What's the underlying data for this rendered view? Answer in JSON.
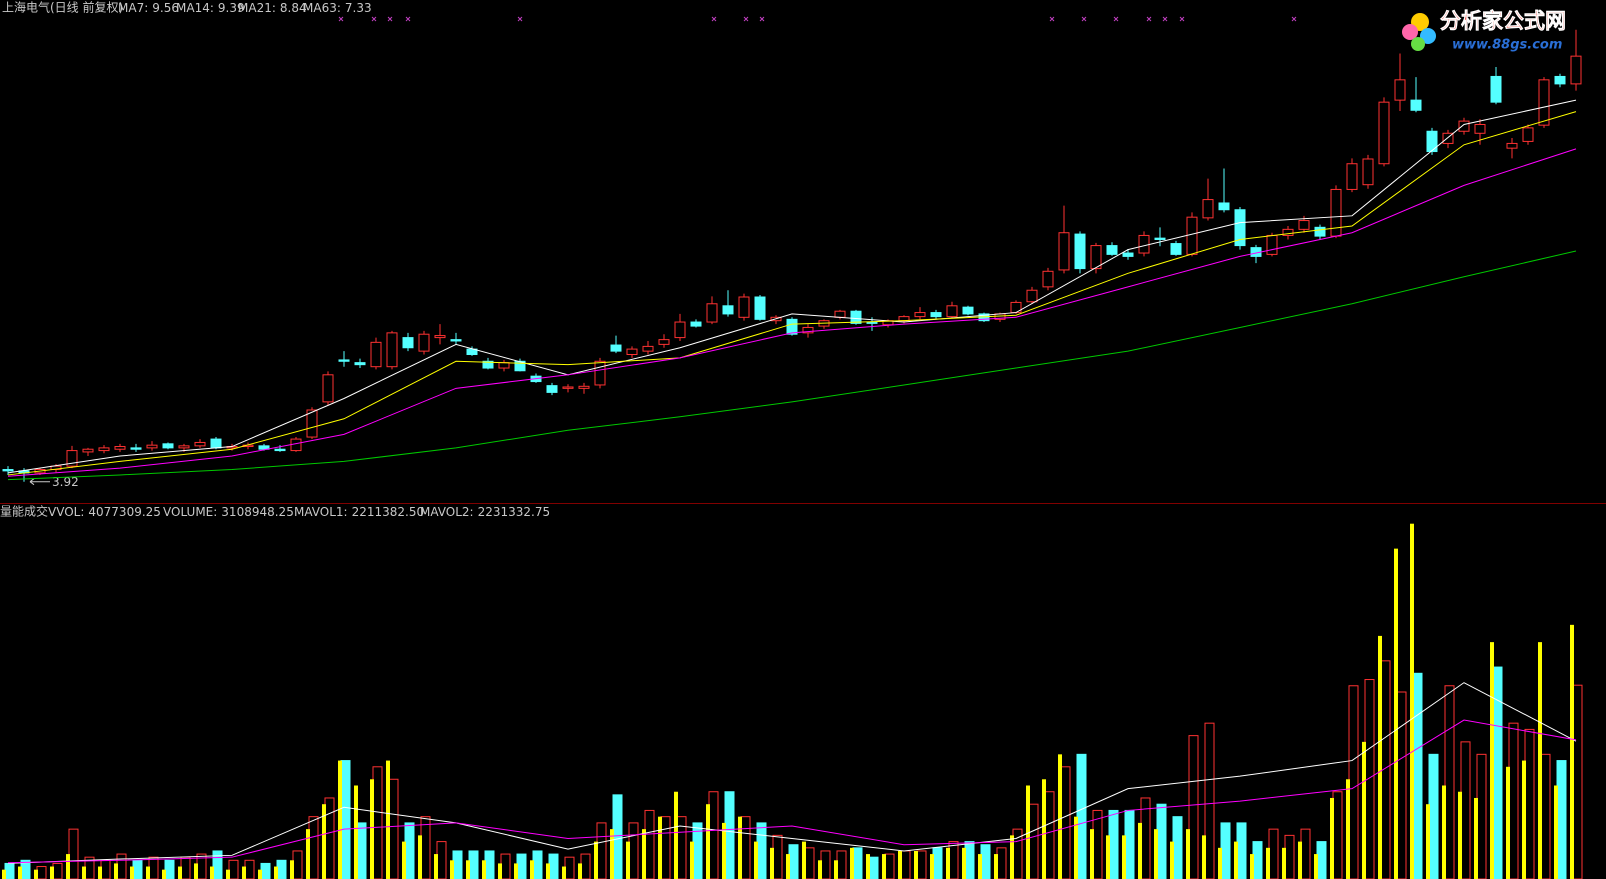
{
  "chart_data": [
    {
      "type": "candlestick",
      "title": "上海电气(日线 前复权)",
      "open": [
        4.1,
        4.08,
        4.05,
        4.1,
        4.15,
        4.36,
        4.38,
        4.4,
        4.42,
        4.42,
        4.48,
        4.42,
        4.45,
        4.55,
        4.42,
        4.44,
        4.45,
        4.4,
        4.38,
        4.58,
        5.1,
        5.72,
        5.68,
        5.62,
        5.62,
        6.05,
        5.85,
        6.05,
        6.02,
        5.88,
        5.7,
        5.6,
        5.7,
        5.48,
        5.34,
        5.3,
        5.3,
        5.35,
        5.94,
        5.8,
        5.85,
        5.95,
        6.05,
        6.28,
        6.28,
        6.52,
        6.35,
        6.65,
        6.3,
        6.32,
        6.12,
        6.22,
        6.35,
        6.44,
        6.28,
        6.24,
        6.3,
        6.36,
        6.42,
        6.36,
        6.5,
        6.4,
        6.32,
        6.42,
        6.58,
        6.8,
        7.05,
        7.58,
        7.07,
        7.41,
        7.3,
        7.3,
        7.52,
        7.44,
        7.28,
        7.82,
        8.04,
        7.94,
        7.38,
        7.28,
        7.56,
        7.65,
        7.68,
        7.55,
        8.24,
        8.31,
        8.62,
        9.56,
        9.56,
        9.1,
        8.92,
        9.1,
        9.07,
        9.91,
        8.85,
        8.95,
        9.19,
        9.91,
        9.8
      ],
      "high": [
        4.15,
        4.12,
        4.12,
        4.18,
        4.45,
        4.42,
        4.46,
        4.48,
        4.48,
        4.52,
        4.5,
        4.48,
        4.55,
        4.58,
        4.48,
        4.5,
        4.48,
        4.46,
        4.58,
        5.02,
        5.55,
        5.85,
        5.74,
        6.05,
        6.15,
        6.12,
        6.15,
        6.25,
        6.12,
        5.92,
        5.75,
        5.72,
        5.74,
        5.52,
        5.38,
        5.36,
        5.38,
        5.75,
        6.08,
        5.92,
        6.0,
        6.1,
        6.4,
        6.32,
        6.66,
        6.75,
        6.7,
        6.68,
        6.38,
        6.35,
        6.25,
        6.32,
        6.46,
        6.46,
        6.35,
        6.32,
        6.38,
        6.5,
        6.46,
        6.58,
        6.52,
        6.42,
        6.42,
        6.6,
        6.8,
        7.08,
        8.0,
        7.62,
        7.45,
        7.46,
        7.36,
        7.62,
        7.68,
        7.48,
        7.9,
        8.4,
        8.55,
        7.98,
        7.42,
        7.6,
        7.7,
        7.85,
        7.72,
        8.3,
        8.7,
        8.75,
        9.6,
        10.25,
        9.9,
        9.15,
        9.12,
        9.3,
        9.28,
        10.05,
        9.0,
        9.2,
        9.9,
        9.95,
        10.6
      ],
      "low": [
        4.02,
        3.92,
        4.02,
        4.06,
        4.12,
        4.3,
        4.34,
        4.36,
        4.36,
        4.38,
        4.4,
        4.36,
        4.42,
        4.4,
        4.38,
        4.4,
        4.38,
        4.36,
        4.36,
        4.55,
        5.05,
        5.62,
        5.6,
        5.58,
        5.58,
        5.85,
        5.8,
        5.95,
        5.95,
        5.78,
        5.58,
        5.55,
        5.55,
        5.38,
        5.2,
        5.24,
        5.22,
        5.3,
        5.82,
        5.75,
        5.8,
        5.9,
        6.0,
        6.2,
        6.25,
        6.36,
        6.3,
        6.3,
        6.25,
        6.08,
        6.05,
        6.18,
        6.32,
        6.24,
        6.15,
        6.2,
        6.26,
        6.32,
        6.33,
        6.34,
        6.38,
        6.28,
        6.28,
        6.4,
        6.55,
        6.75,
        7.0,
        7.0,
        7.0,
        7.26,
        7.2,
        7.25,
        7.4,
        7.26,
        7.25,
        7.78,
        7.9,
        7.35,
        7.15,
        7.25,
        7.5,
        7.6,
        7.5,
        7.52,
        8.2,
        8.25,
        8.58,
        9.4,
        9.38,
        8.75,
        8.85,
        9.05,
        8.9,
        9.5,
        8.7,
        8.9,
        9.15,
        9.75,
        9.7
      ],
      "close": [
        4.08,
        4.05,
        4.1,
        4.15,
        4.38,
        4.4,
        4.42,
        4.44,
        4.4,
        4.46,
        4.42,
        4.45,
        4.5,
        4.42,
        4.44,
        4.46,
        4.4,
        4.38,
        4.55,
        4.98,
        5.5,
        5.7,
        5.65,
        5.98,
        6.12,
        5.9,
        6.1,
        6.08,
        6.0,
        5.8,
        5.6,
        5.68,
        5.56,
        5.4,
        5.24,
        5.32,
        5.33,
        5.7,
        5.85,
        5.88,
        5.92,
        6.02,
        6.28,
        6.22,
        6.55,
        6.4,
        6.65,
        6.32,
        6.35,
        6.1,
        6.2,
        6.3,
        6.44,
        6.26,
        6.26,
        6.3,
        6.36,
        6.42,
        6.36,
        6.52,
        6.4,
        6.3,
        6.4,
        6.57,
        6.75,
        7.03,
        7.6,
        7.07,
        7.41,
        7.28,
        7.25,
        7.56,
        7.5,
        7.28,
        7.83,
        8.09,
        7.94,
        7.41,
        7.25,
        7.56,
        7.65,
        7.78,
        7.55,
        8.24,
        8.62,
        8.69,
        9.53,
        9.86,
        9.41,
        8.8,
        9.07,
        9.25,
        9.2,
        9.53,
        8.92,
        9.15,
        9.86,
        9.8,
        10.21
      ],
      "up_color": "#ff3232",
      "down_color": "#54ffff",
      "ylim": [
        3.62,
        11.04
      ],
      "series": [
        {
          "name": "MA7:",
          "color": "#ffffff",
          "x": [
            0,
            7,
            14,
            21,
            28,
            35,
            42,
            49,
            56,
            63,
            70,
            77,
            84,
            91,
            98
          ],
          "values": [
            4.05,
            4.3,
            4.44,
            5.15,
            5.95,
            5.5,
            5.9,
            6.4,
            6.28,
            6.42,
            7.35,
            7.75,
            7.85,
            9.2,
            9.56
          ]
        },
        {
          "name": "MA14:",
          "color": "#ffff00",
          "x": [
            0,
            7,
            14,
            21,
            28,
            35,
            42,
            49,
            56,
            63,
            70,
            77,
            84,
            91,
            98
          ],
          "values": [
            4.02,
            4.22,
            4.4,
            4.85,
            5.7,
            5.65,
            5.75,
            6.25,
            6.3,
            6.38,
            7.0,
            7.5,
            7.7,
            8.9,
            9.39
          ]
        },
        {
          "name": "MA21:",
          "color": "#ff00ff",
          "x": [
            0,
            7,
            14,
            21,
            28,
            35,
            42,
            49,
            56,
            63,
            70,
            77,
            84,
            91,
            98
          ],
          "values": [
            4.0,
            4.12,
            4.3,
            4.62,
            5.3,
            5.5,
            5.75,
            6.12,
            6.25,
            6.35,
            6.8,
            7.25,
            7.6,
            8.3,
            8.84
          ]
        },
        {
          "name": "MA63:",
          "color": "#00c800",
          "x": [
            0,
            7,
            14,
            21,
            28,
            35,
            42,
            49,
            56,
            63,
            70,
            77,
            84,
            91,
            98
          ],
          "values": [
            3.95,
            4.02,
            4.1,
            4.22,
            4.42,
            4.68,
            4.88,
            5.1,
            5.35,
            5.6,
            5.85,
            6.2,
            6.55,
            6.95,
            7.33
          ]
        }
      ]
    },
    {
      "type": "volume",
      "title": "量能成交",
      "ylim": [
        0,
        6000000
      ],
      "series": [
        {
          "name": "VVOL:",
          "color": "#ffff00",
          "values": [
            150000,
            200000,
            150000,
            200000,
            400000,
            200000,
            200000,
            250000,
            200000,
            200000,
            150000,
            200000,
            250000,
            200000,
            150000,
            200000,
            150000,
            200000,
            300000,
            800000,
            1200000,
            1900000,
            1500000,
            1600000,
            1900000,
            600000,
            700000,
            400000,
            300000,
            300000,
            300000,
            250000,
            250000,
            300000,
            250000,
            200000,
            250000,
            600000,
            800000,
            600000,
            800000,
            1000000,
            1400000,
            600000,
            1200000,
            900000,
            1000000,
            600000,
            500000,
            400000,
            600000,
            300000,
            300000,
            500000,
            400000,
            400000,
            450000,
            450000,
            400000,
            500000,
            500000,
            400000,
            400000,
            700000,
            1500000,
            1600000,
            2000000,
            1000000,
            800000,
            700000,
            700000,
            900000,
            800000,
            600000,
            800000,
            700000,
            500000,
            600000,
            400000,
            500000,
            500000,
            600000,
            400000,
            1300000,
            1600000,
            2200000,
            3900000,
            5300000,
            5700000,
            1200000,
            1500000,
            1400000,
            1300000,
            3800000,
            1800000,
            1900000,
            3800000,
            1500000,
            4077309.25
          ]
        },
        {
          "name": "VOLUME:",
          "color": "#54ffff",
          "values": [
            250000,
            300000,
            200000,
            250000,
            800000,
            350000,
            300000,
            400000,
            300000,
            350000,
            300000,
            350000,
            400000,
            450000,
            300000,
            300000,
            250000,
            300000,
            450000,
            1000000,
            1300000,
            1900000,
            900000,
            1800000,
            1600000,
            900000,
            1000000,
            600000,
            450000,
            450000,
            450000,
            400000,
            400000,
            450000,
            400000,
            350000,
            400000,
            900000,
            1350000,
            900000,
            1100000,
            1000000,
            1000000,
            900000,
            1400000,
            1400000,
            1000000,
            900000,
            700000,
            550000,
            500000,
            450000,
            450000,
            500000,
            350000,
            400000,
            450000,
            450000,
            500000,
            600000,
            600000,
            550000,
            500000,
            800000,
            1200000,
            1400000,
            1800000,
            2000000,
            1100000,
            1100000,
            1100000,
            1300000,
            1200000,
            1000000,
            2300000,
            2500000,
            900000,
            900000,
            600000,
            800000,
            700000,
            800000,
            600000,
            1400000,
            3100000,
            3200000,
            3500000,
            3000000,
            3300000,
            2000000,
            3100000,
            2200000,
            2000000,
            3400000,
            2500000,
            2400000,
            2000000,
            1900000,
            3108948.25
          ]
        },
        {
          "name": "MAVOL1:",
          "color": "#ffffff",
          "x": [
            0,
            7,
            14,
            21,
            28,
            35,
            42,
            49,
            56,
            63,
            70,
            77,
            84,
            91,
            98
          ],
          "values": [
            250000,
            320000,
            380000,
            1150000,
            900000,
            480000,
            850000,
            650000,
            450000,
            650000,
            1450000,
            1650000,
            1900000,
            3150000,
            2211382.5
          ],
          "value_labels": [
            null,
            null,
            null,
            null,
            null,
            null,
            null,
            null,
            null,
            null,
            null,
            null,
            null,
            null,
            "2211382.50"
          ]
        },
        {
          "name": "MAVOL2:",
          "color": "#ff00ff",
          "x": [
            0,
            7,
            14,
            21,
            28,
            35,
            42,
            49,
            56,
            63,
            70,
            77,
            84,
            91,
            98
          ],
          "values": [
            260000,
            300000,
            350000,
            800000,
            900000,
            650000,
            750000,
            850000,
            550000,
            600000,
            1100000,
            1250000,
            1450000,
            2550000,
            2231332.75
          ]
        }
      ]
    }
  ],
  "watermark": {
    "name": "分析家公式网",
    "url": "www.88gs.com"
  }
}
